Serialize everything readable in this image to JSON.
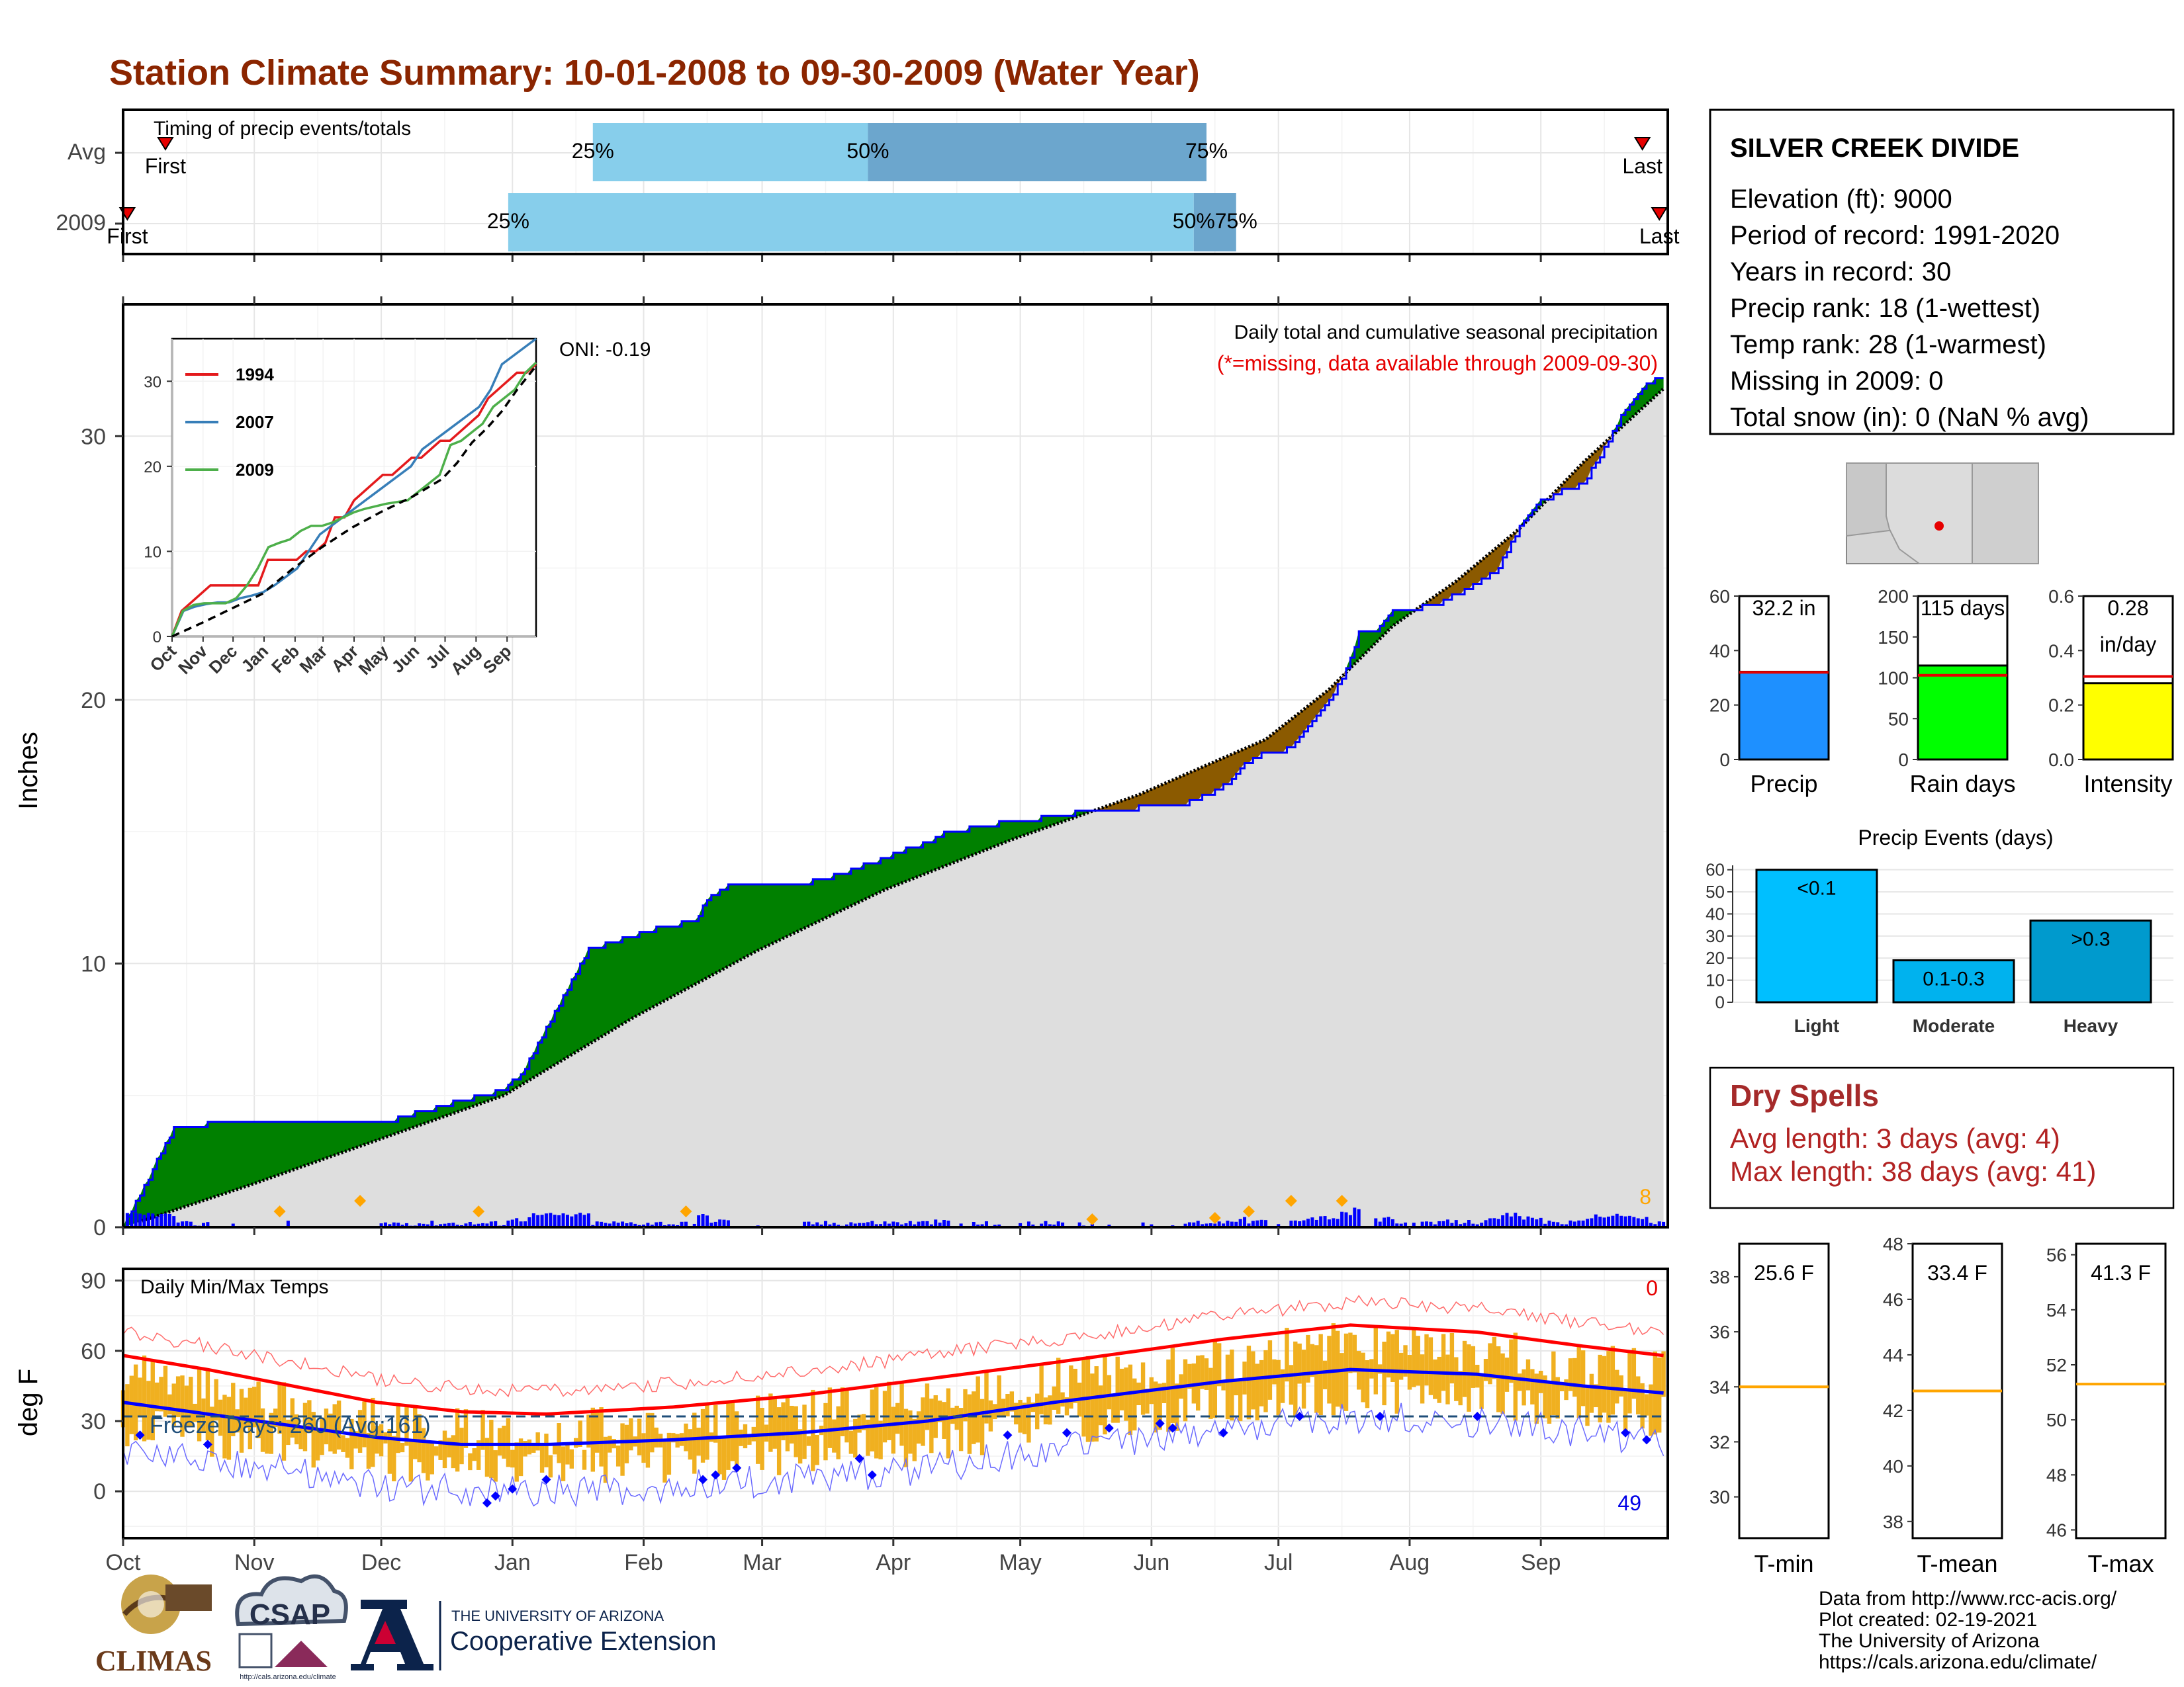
{
  "title": "Station Climate Summary: 10-01-2008 to 09-30-2009 (Water Year)",
  "timing": {
    "label": "Timing of precip events/totals",
    "rows": [
      "Avg",
      "2009"
    ],
    "first_label": "First",
    "last_label": "Last",
    "pct_labels": [
      "25%",
      "50%",
      "75%"
    ]
  },
  "main": {
    "ylabel": "Inches",
    "oni": "ONI: -0.19",
    "caption": "Daily total and cumulative seasonal precipitation",
    "missing_note": "(*=missing, data available through 2009-09-30)",
    "count_right": "8",
    "yticks": [
      "0",
      "10",
      "20",
      "30"
    ]
  },
  "inset": {
    "legend": [
      {
        "name": "1994",
        "color": "#e41a1c"
      },
      {
        "name": "2007",
        "color": "#377eb8"
      },
      {
        "name": "2009",
        "color": "#4daf4a"
      }
    ],
    "months": [
      "Oct",
      "Nov",
      "Dec",
      "Jan",
      "Feb",
      "Mar",
      "Apr",
      "May",
      "Jun",
      "Jul",
      "Aug",
      "Sep"
    ],
    "yticks": [
      "0",
      "10",
      "20",
      "30"
    ]
  },
  "temps": {
    "ylabel": "deg F",
    "label": "Daily Min/Max Temps",
    "freeze_label": "Freeze Days: 260 (Avg:161)",
    "count_hot": "0",
    "count_cold": "49",
    "yticks": [
      "0",
      "30",
      "60",
      "90"
    ]
  },
  "months": [
    "Oct",
    "Nov",
    "Dec",
    "Jan",
    "Feb",
    "Mar",
    "Apr",
    "May",
    "Jun",
    "Jul",
    "Aug",
    "Sep"
  ],
  "station": {
    "name": "SILVER CREEK DIVIDE",
    "lines": [
      "Elevation (ft): 9000",
      "Period of record: 1991-2020",
      "Years in record: 30",
      "Precip rank: 18 (1-wettest)",
      "Temp rank: 28 (1-warmest)",
      "Missing in 2009: 0",
      "Total snow (in): 0 (NaN % avg)"
    ]
  },
  "summary_bars": [
    {
      "label": "Precip",
      "value_text": "32.2 in",
      "value": 32.2,
      "avg": 32.0,
      "ymax": 60,
      "ticks": [
        "0",
        "20",
        "40",
        "60"
      ],
      "color": "#1e90ff"
    },
    {
      "label": "Rain days",
      "value_text": "115 days",
      "value": 115,
      "avg": 103,
      "ymax": 200,
      "ticks": [
        "0",
        "50",
        "100",
        "150",
        "200"
      ],
      "color": "#00ff00"
    },
    {
      "label": "Intensity",
      "value_text": "0.28",
      "value_text2": "in/day",
      "value": 0.28,
      "avg": 0.305,
      "ymax": 0.6,
      "ticks": [
        "0.0",
        "0.2",
        "0.4",
        "0.6"
      ],
      "color": "#ffff00"
    }
  ],
  "precip_events": {
    "title": "Precip Events (days)",
    "ticks": [
      "0",
      "10",
      "20",
      "30",
      "40",
      "50",
      "60"
    ],
    "bars": [
      {
        "label": "Light",
        "inner": "<0.1",
        "value": 60,
        "color": "#00bfff"
      },
      {
        "label": "Moderate",
        "inner": "0.1-0.3",
        "value": 19,
        "color": "#00b2ee"
      },
      {
        "label": "Heavy",
        "inner": ">0.3",
        "value": 37,
        "color": "#009acd"
      }
    ]
  },
  "dry_spells": {
    "title": "Dry Spells",
    "avg": "Avg length: 3 days (avg: 4)",
    "max": "Max length: 38 days (avg: 41)"
  },
  "temp_bars": [
    {
      "label": "T-min",
      "value_text": "25.6 F",
      "avg": 34.0,
      "ymin": 28.5,
      "ymax": 39.2,
      "ticks": [
        "30",
        "32",
        "34",
        "36",
        "38"
      ]
    },
    {
      "label": "T-mean",
      "value_text": "33.4 F",
      "avg": 42.7,
      "ymin": 37.4,
      "ymax": 48.0,
      "ticks": [
        "38",
        "40",
        "42",
        "44",
        "46",
        "48"
      ]
    },
    {
      "label": "T-max",
      "value_text": "41.3 F",
      "avg": 51.3,
      "ymin": 45.7,
      "ymax": 56.4,
      "ticks": [
        "46",
        "48",
        "50",
        "52",
        "54",
        "56"
      ]
    }
  ],
  "footer": {
    "lines": [
      "Data from http://www.rcc-acis.org/",
      "Plot created: 02-19-2021",
      "The University of Arizona",
      "https://cals.arizona.edu/climate/"
    ],
    "logo_climas": "CLIMAS",
    "logo_csap": "CSAP",
    "logo_csap_url": "http://cals.arizona.edu/climate",
    "ua_small": "THE UNIVERSITY OF ARIZONA",
    "ua_big": "Cooperative Extension"
  },
  "chart_data": {
    "type": "area",
    "title": "Station Climate Summary: 10-01-2008 to 09-30-2009 (Water Year)",
    "ylabel": "Inches",
    "ylim": [
      0,
      35
    ],
    "months": [
      "Oct",
      "Nov",
      "Dec",
      "Jan",
      "Feb",
      "Mar",
      "Apr",
      "May",
      "Jun",
      "Jul",
      "Aug",
      "Sep"
    ],
    "series": [
      {
        "name": "cumulative_2009",
        "x_day": [
          0,
          5,
          8,
          12,
          20,
          40,
          60,
          80,
          90,
          95,
          100,
          110,
          120,
          128,
          135,
          138,
          143,
          150,
          160,
          170,
          175,
          180,
          185,
          190,
          195,
          200,
          207,
          213,
          220,
          230,
          240,
          250,
          260,
          265,
          270,
          275,
          280,
          287,
          290,
          292,
          295,
          300,
          310,
          315,
          320,
          325,
          330,
          335,
          340,
          345,
          350,
          355,
          360,
          364
        ],
        "values": [
          0,
          1.5,
          2.5,
          3.7,
          3.9,
          3.9,
          3.9,
          4.8,
          5.2,
          6.0,
          7.5,
          10.5,
          11.0,
          11.4,
          11.6,
          12.4,
          13.0,
          13.0,
          13.0,
          13.4,
          13.7,
          14.0,
          14.3,
          14.6,
          15.0,
          15.1,
          15.3,
          15.4,
          15.6,
          15.8,
          15.9,
          16.0,
          16.7,
          17.5,
          18.0,
          18.1,
          19.0,
          20.5,
          21.5,
          22.5,
          22.5,
          23.3,
          23.6,
          24.0,
          24.4,
          25.0,
          26.5,
          27.5,
          27.9,
          28.2,
          29.5,
          31.0,
          32.0,
          32.2
        ]
      },
      {
        "name": "average",
        "x_day": [
          0,
          30,
          60,
          90,
          120,
          150,
          180,
          210,
          240,
          270,
          285,
          300,
          315,
          330,
          345,
          364
        ],
        "values": [
          0,
          1.6,
          3.3,
          5.0,
          7.9,
          10.5,
          12.8,
          14.7,
          16.4,
          18.5,
          20.4,
          22.8,
          24.5,
          26.5,
          29.0,
          31.8
        ]
      }
    ],
    "temps": {
      "ylim": [
        -20,
        95
      ],
      "avg_max": [
        58,
        52,
        45,
        38,
        34,
        33,
        36,
        41,
        48,
        55,
        65,
        71,
        68,
        62,
        58
      ],
      "avg_min": [
        38,
        33,
        28,
        23,
        20,
        20,
        22,
        25,
        30,
        38,
        47,
        52,
        50,
        45,
        42
      ],
      "avg_max_x_day": [
        0,
        20,
        40,
        60,
        80,
        100,
        130,
        160,
        190,
        220,
        260,
        290,
        320,
        345,
        364
      ],
      "freeze_line": 32
    }
  }
}
